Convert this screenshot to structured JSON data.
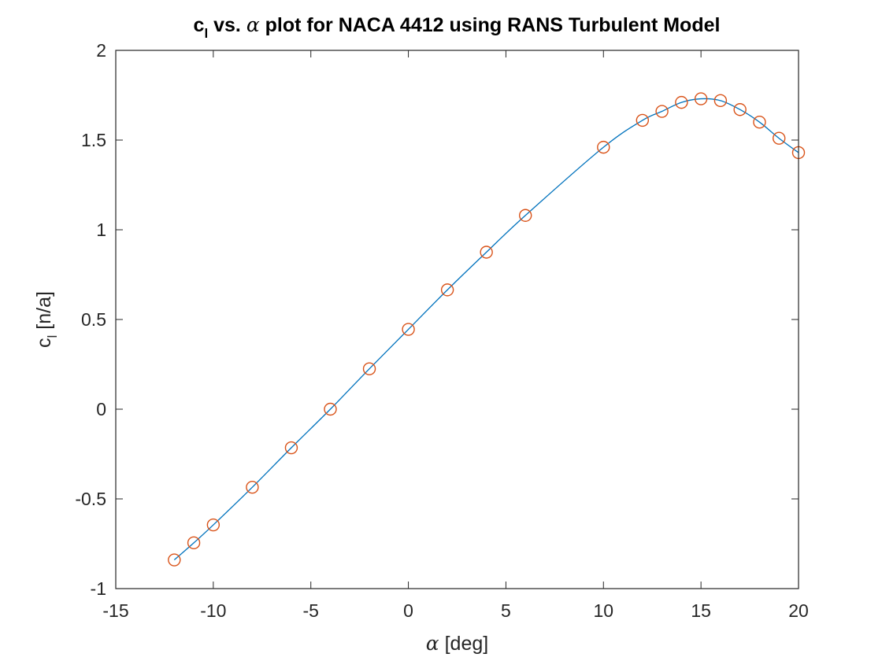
{
  "chart_data": {
    "type": "line",
    "title": {
      "symbol": "c",
      "subscript": "l",
      "middle": " vs. ",
      "greek": "α",
      "rest": " plot for NACA 4412 using RANS Turbulent Model"
    },
    "xlabel": {
      "greek": "α",
      "text": " [deg]"
    },
    "ylabel": {
      "symbol": "c",
      "subscript": "l",
      "text": " [n/a]"
    },
    "xlim": [
      -15,
      20
    ],
    "ylim": [
      -1,
      2
    ],
    "xticks": [
      -15,
      -10,
      -5,
      0,
      5,
      10,
      15,
      20
    ],
    "xtick_labels": [
      "-15",
      "-10",
      "-5",
      "0",
      "5",
      "10",
      "15",
      "20"
    ],
    "yticks": [
      -1,
      -0.5,
      0,
      0.5,
      1,
      1.5,
      2
    ],
    "ytick_labels": [
      "-1",
      "-0.5",
      "0",
      "0.5",
      "1",
      "1.5",
      "2"
    ],
    "grid": false,
    "series": [
      {
        "style": "line",
        "color": "#0072BD",
        "x": [
          -12,
          -11,
          -10,
          -8,
          -6,
          -4,
          -2,
          0,
          2,
          4,
          6,
          10,
          12,
          13,
          14,
          15,
          16,
          17,
          18,
          19,
          20
        ],
        "y": [
          -0.84,
          -0.745,
          -0.645,
          -0.435,
          -0.215,
          0.0,
          0.225,
          0.445,
          0.665,
          0.875,
          1.08,
          1.46,
          1.61,
          1.66,
          1.71,
          1.73,
          1.72,
          1.67,
          1.6,
          1.51,
          1.43
        ]
      },
      {
        "style": "markers",
        "marker": "circle",
        "color": "#D95319",
        "x": [
          -12,
          -11,
          -10,
          -8,
          -6,
          -4,
          -2,
          0,
          2,
          4,
          6,
          10,
          12,
          13,
          14,
          15,
          16,
          17,
          18,
          19,
          20
        ],
        "y": [
          -0.84,
          -0.745,
          -0.645,
          -0.435,
          -0.215,
          0.0,
          0.225,
          0.445,
          0.665,
          0.875,
          1.08,
          1.46,
          1.61,
          1.66,
          1.71,
          1.73,
          1.72,
          1.67,
          1.6,
          1.51,
          1.43
        ]
      }
    ],
    "colors": {
      "axes": "#262626",
      "line": "#0072BD",
      "markers": "#D95319"
    }
  }
}
